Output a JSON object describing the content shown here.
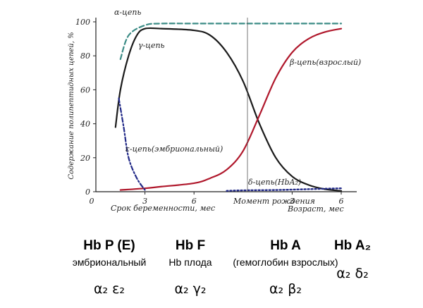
{
  "chart_data": {
    "type": "line",
    "ylabel": "Содержание полипептидных цепей, %",
    "ylim": [
      0,
      100
    ],
    "y_ticks": [
      "0",
      "20",
      "40",
      "60",
      "80",
      "100"
    ],
    "x_segments": [
      {
        "label": "Срок беременности, мес",
        "ticks": [
          "0",
          "3",
          "6"
        ]
      },
      {
        "label": "Момент рождения",
        "ticks": []
      },
      {
        "label": "Возраст, мес",
        "ticks": [
          "3",
          "6"
        ]
      }
    ],
    "grid": false,
    "series": [
      {
        "name": "α-цепь",
        "color": "#3c8c86",
        "style": "dashed",
        "x": [
          1.5,
          2,
          3,
          4,
          6,
          9,
          13,
          15
        ],
        "y": [
          78,
          92,
          98,
          99,
          99,
          99,
          99,
          99
        ]
      },
      {
        "name": "γ-цепь",
        "color": "#1a1a1a",
        "style": "solid",
        "x": [
          1.2,
          1.5,
          2,
          2.5,
          3,
          4,
          6,
          7,
          8,
          9,
          10,
          11,
          12,
          13,
          14,
          15
        ],
        "y": [
          38,
          60,
          80,
          92,
          96,
          96,
          95,
          92,
          82,
          65,
          40,
          20,
          9,
          4,
          1.5,
          0.5
        ]
      },
      {
        "name": "β-цепь(взрослый)",
        "color": "#b0182c",
        "style": "solid",
        "x": [
          1.5,
          3,
          4,
          6,
          7,
          8,
          9,
          10,
          11,
          12,
          13,
          14,
          15
        ],
        "y": [
          1,
          2,
          3,
          5,
          8,
          13,
          24,
          45,
          67,
          82,
          90,
          94,
          96
        ]
      },
      {
        "name": "ε-цепь(эмбриональный)",
        "color": "#222a88",
        "style": "dashdot",
        "x": [
          1.4,
          1.7,
          2,
          2.5,
          3
        ],
        "y": [
          55,
          38,
          20,
          8,
          1
        ]
      },
      {
        "name": "δ-цепь(HbA₂)",
        "color": "#222a88",
        "style": "dotted",
        "x": [
          8,
          9,
          11,
          13,
          15
        ],
        "y": [
          0.5,
          0.8,
          1,
          1.5,
          2
        ]
      }
    ],
    "annotations": [
      "Момент рождения"
    ]
  },
  "hemoglobins": [
    {
      "name": "Hb P (E)",
      "description": "эмбриональный",
      "chains": "α₂ ε₂"
    },
    {
      "name": "Hb F",
      "description": "Hb плода",
      "chains": "α₂ γ₂"
    },
    {
      "name": "Hb A",
      "description": "(гемоглобин взрослых)",
      "chains": "α₂ β₂"
    },
    {
      "name": "Hb A₂",
      "description": "",
      "chains": "α₂ δ₂"
    }
  ]
}
